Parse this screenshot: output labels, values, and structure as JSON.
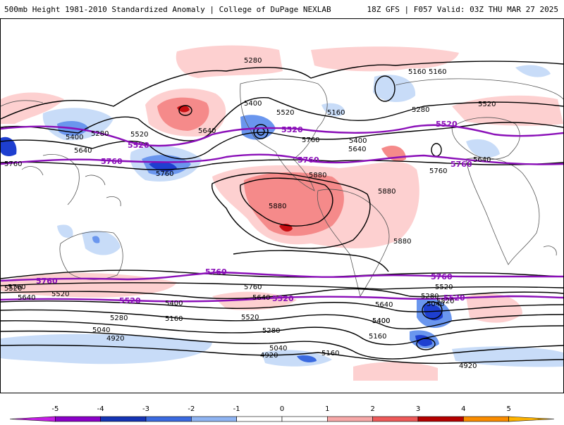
{
  "header": {
    "left_title": "500mb Height 1981-2010 Standardized Anomaly | College of DuPage NEXLAB",
    "right_title": "18Z GFS | F057 Valid: 03Z THU MAR 27 2025"
  },
  "colors": {
    "contour": "#000000",
    "highlight_contour": "#8a0fb8",
    "coastline": "#555555",
    "anom_pos_1": "#fdd0d0",
    "anom_pos_2": "#f58a8a",
    "anom_pos_3": "#c80e12",
    "anom_neg_1": "#c8dcf8",
    "anom_neg_2": "#6a96ee",
    "anom_neg_3": "#1e3fd0"
  },
  "contour_labels": [
    "5280",
    "5160",
    "5160",
    "5400",
    "5520",
    "5160",
    "5280",
    "5520",
    "5400",
    "5280",
    "5520",
    "5640",
    "5640",
    "5400",
    "5640",
    "5760",
    "5760",
    "5760",
    "5880",
    "5880",
    "5880",
    "5880",
    "5520",
    "5640",
    "5760",
    "5760",
    "5520",
    "5400",
    "5640",
    "5640",
    "5520",
    "5400",
    "5280",
    "5520",
    "5160",
    "5280",
    "5040",
    "4920",
    "5040",
    "5400",
    "5160",
    "4920",
    "5640",
    "5760",
    "5520",
    "5280",
    "5040",
    "4920",
    "5160"
  ],
  "highlight_labels": [
    "5520",
    "5520",
    "5520",
    "5760",
    "5760",
    "5760",
    "5760",
    "5760",
    "5760",
    "5520",
    "5520",
    "5520"
  ],
  "colorbar": {
    "ticks": [
      "-5",
      "-4",
      "-3",
      "-2",
      "-1",
      "0",
      "1",
      "2",
      "3",
      "4",
      "5"
    ],
    "colors": [
      "#c61ee6",
      "#8b00c8",
      "#1433b4",
      "#3a6ae0",
      "#8fb4f2",
      "#ffffff",
      "#ffffff",
      "#f7a8a8",
      "#ee5a5a",
      "#b40000",
      "#fa8c00",
      "#ffb400"
    ]
  }
}
